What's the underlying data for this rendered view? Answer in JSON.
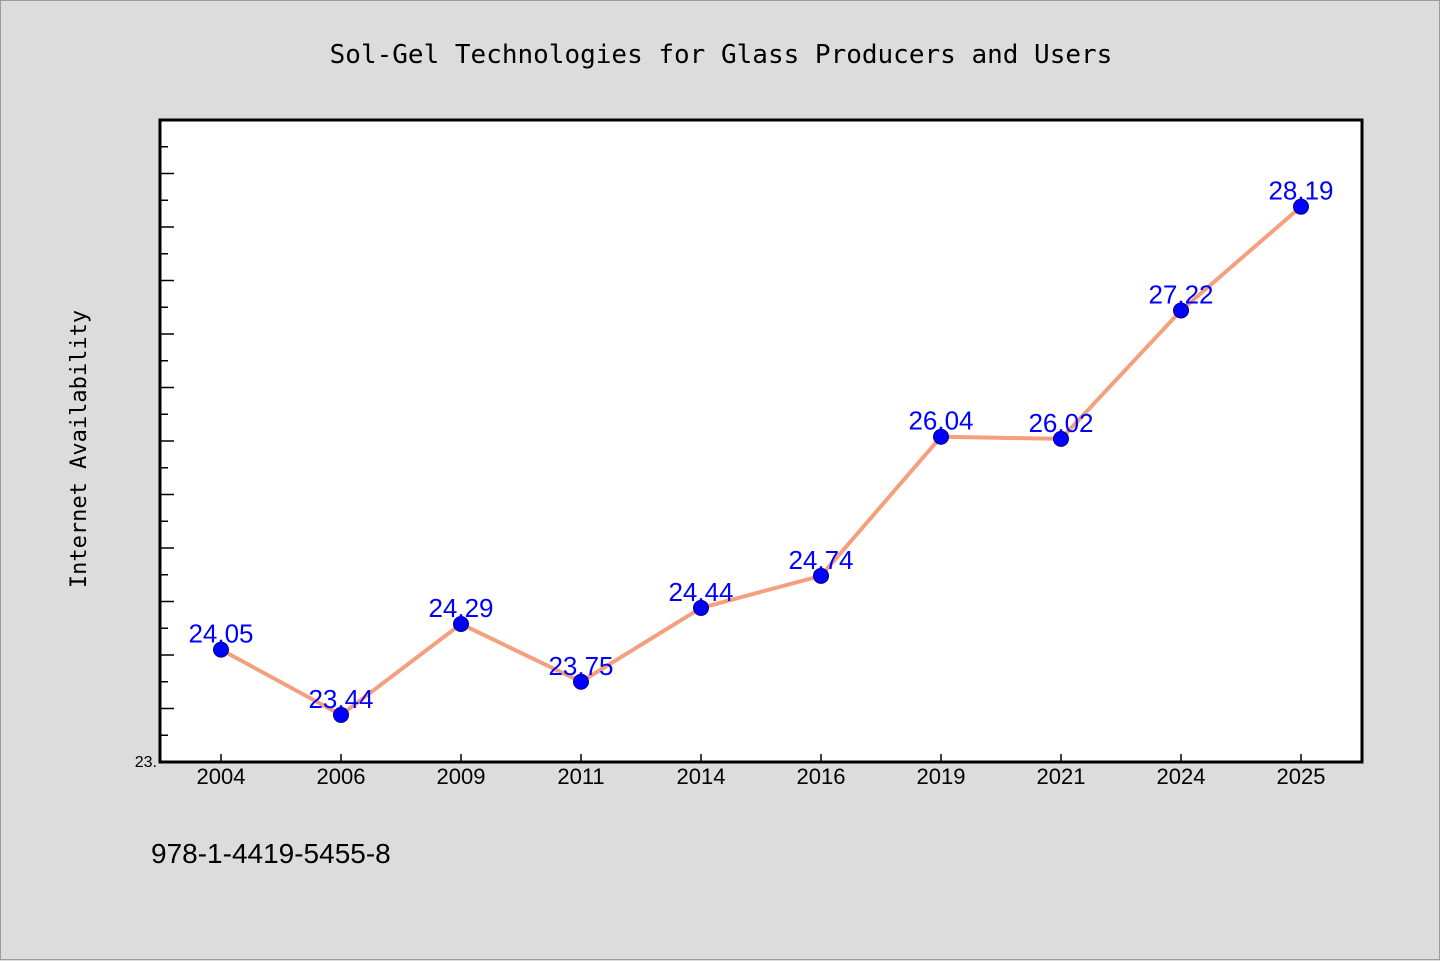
{
  "chart_data": {
    "type": "line",
    "title": "Sol-Gel Technologies for Glass Producers and Users",
    "xlabel": "",
    "ylabel": "Internet Availability",
    "categories": [
      "2004",
      "2006",
      "2009",
      "2011",
      "2014",
      "2016",
      "2019",
      "2021",
      "2024",
      "2025"
    ],
    "series": [
      {
        "values": [
          24.05,
          23.44,
          24.29,
          23.75,
          24.44,
          24.74,
          26.04,
          26.02,
          27.22,
          28.19
        ],
        "labels": [
          "24.05",
          "23.44",
          "24.29",
          "23.75",
          "24.44",
          "24.74",
          "26.04",
          "26.02",
          "27.22",
          "28.19"
        ]
      }
    ],
    "ylim": [
      23.0,
      29.0
    ],
    "y_min_label": "23.",
    "grid": false,
    "line_color": "#f4a07e",
    "marker_color": "#0000ff",
    "label_color": "#0000ff",
    "plot_background": "#ffffff",
    "figure_background": "#dcdcdc"
  },
  "footer": {
    "isbn": "978-1-4419-5455-8"
  }
}
